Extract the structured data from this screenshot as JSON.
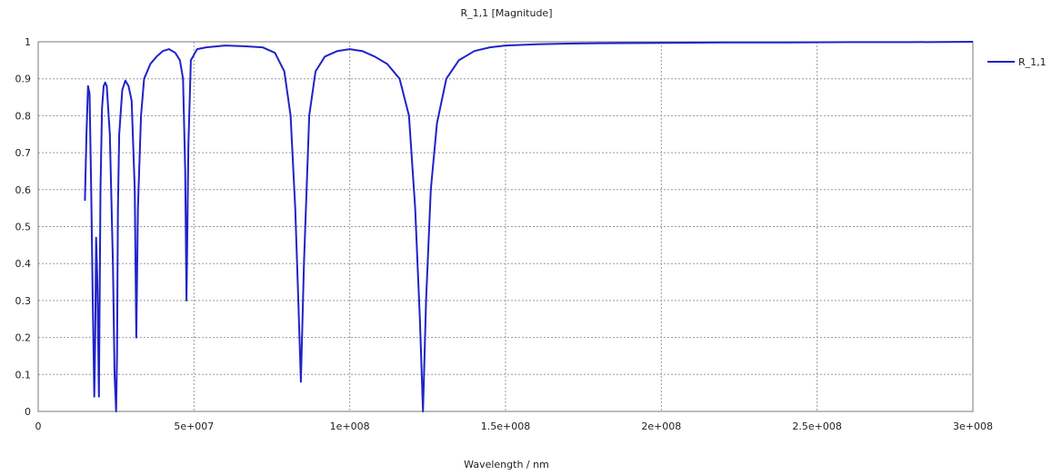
{
  "colors": {
    "series": "#1f23c8",
    "grid": "#9a9a9a",
    "frame": "#7a7a7a"
  },
  "chart_data": {
    "type": "line",
    "title": "R_1,1 [Magnitude]",
    "xlabel": "Wavelength / nm",
    "ylabel": "",
    "xlim": [
      0,
      300000000
    ],
    "ylim": [
      0,
      1
    ],
    "grid": true,
    "legend": "right",
    "x_ticks": [
      0,
      50000000,
      100000000,
      150000000,
      200000000,
      250000000,
      300000000
    ],
    "x_tick_labels": [
      "0",
      "5e+007",
      "1e+008",
      "1.5e+008",
      "2e+008",
      "2.5e+008",
      "3e+008"
    ],
    "y_ticks": [
      0,
      0.1,
      0.2,
      0.3,
      0.4,
      0.5,
      0.6,
      0.7,
      0.8,
      0.9,
      1
    ],
    "y_tick_labels": [
      "0",
      "0.1",
      "0.2",
      "0.3",
      "0.4",
      "0.5",
      "0.6",
      "0.7",
      "0.8",
      "0.9",
      "1"
    ],
    "series": [
      {
        "name": "R_1,1",
        "color": "#1f23c8",
        "x": [
          15000000,
          15500000,
          16000000,
          16500000,
          17000000,
          17500000,
          18000000,
          18300000,
          18600000,
          19000000,
          19500000,
          20000000,
          20500000,
          21000000,
          21500000,
          22000000,
          23000000,
          24000000,
          24500000,
          25000000,
          25300000,
          25600000,
          26000000,
          27000000,
          28000000,
          29000000,
          30000000,
          31000000,
          31500000,
          32000000,
          33000000,
          34000000,
          36000000,
          38000000,
          40000000,
          42000000,
          44000000,
          45500000,
          46500000,
          47200000,
          47600000,
          48200000,
          49000000,
          51000000,
          54000000,
          60000000,
          66000000,
          72000000,
          76000000,
          79000000,
          81000000,
          82500000,
          83500000,
          84300000,
          85300000,
          87000000,
          89000000,
          92000000,
          96000000,
          100000000,
          104000000,
          108000000,
          112000000,
          116000000,
          119000000,
          121000000,
          122500000,
          123500000,
          124500000,
          126000000,
          128000000,
          131000000,
          135000000,
          140000000,
          145000000,
          150000000,
          160000000,
          170000000,
          180000000,
          200000000,
          220000000,
          240000000,
          260000000,
          280000000,
          300000000
        ],
        "values": [
          0.57,
          0.75,
          0.88,
          0.86,
          0.6,
          0.3,
          0.04,
          0.2,
          0.47,
          0.35,
          0.04,
          0.6,
          0.82,
          0.88,
          0.89,
          0.88,
          0.75,
          0.4,
          0.1,
          0.0,
          0.15,
          0.55,
          0.75,
          0.87,
          0.895,
          0.88,
          0.84,
          0.6,
          0.2,
          0.55,
          0.8,
          0.9,
          0.94,
          0.96,
          0.975,
          0.98,
          0.97,
          0.95,
          0.9,
          0.65,
          0.3,
          0.72,
          0.95,
          0.98,
          0.985,
          0.99,
          0.988,
          0.985,
          0.97,
          0.92,
          0.8,
          0.55,
          0.3,
          0.08,
          0.4,
          0.8,
          0.92,
          0.96,
          0.975,
          0.98,
          0.975,
          0.96,
          0.94,
          0.9,
          0.8,
          0.55,
          0.25,
          0.0,
          0.3,
          0.6,
          0.78,
          0.9,
          0.95,
          0.975,
          0.985,
          0.99,
          0.993,
          0.995,
          0.996,
          0.997,
          0.998,
          0.998,
          0.999,
          0.999,
          1.0
        ]
      }
    ]
  }
}
